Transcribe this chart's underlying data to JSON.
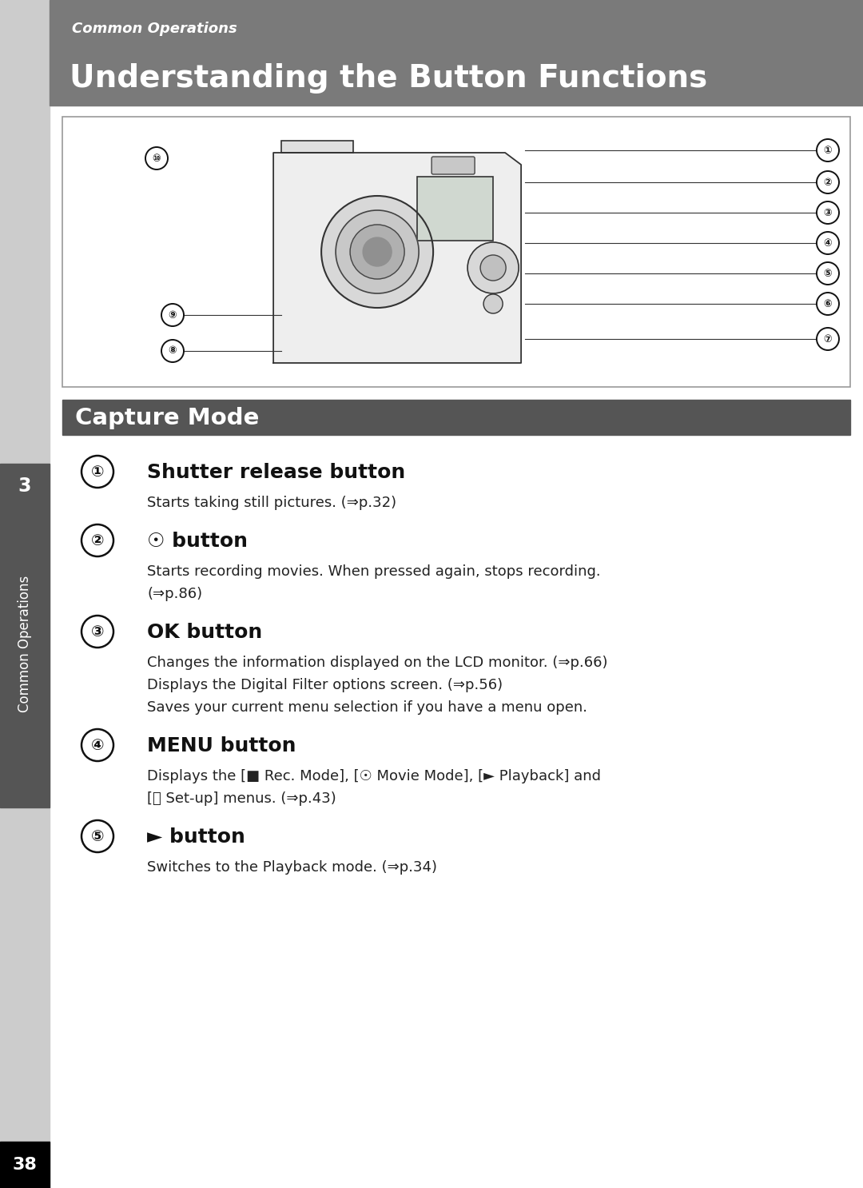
{
  "page_bg": "#ffffff",
  "header_bg": "#7a7a7a",
  "header_subtitle": "Common Operations",
  "header_title": "Understanding the Button Functions",
  "section_bar_bg": "#555555",
  "section_bar_text": "Capture Mode",
  "left_tab_bg": "#555555",
  "left_tab_text": "Common Operations",
  "left_tab_number": "3",
  "page_number": "38",
  "items": [
    {
      "num": "①",
      "heading": "Shutter release button",
      "lines": [
        "Starts taking still pictures. (⇒p.32)"
      ]
    },
    {
      "num": "②",
      "heading_pre": "☉ button",
      "heading": "☉ button",
      "lines": [
        "Starts recording movies. When pressed again, stops recording.",
        "(⇒p.86)"
      ]
    },
    {
      "num": "③",
      "heading": "OK button",
      "lines": [
        "Changes the information displayed on the LCD monitor. (⇒p.66)",
        "Displays the Digital Filter options screen. (⇒p.56)",
        "Saves your current menu selection if you have a menu open."
      ]
    },
    {
      "num": "④",
      "heading": "MENU button",
      "lines": [
        "Displays the [■ Rec. Mode], [☉ Movie Mode], [► Playback] and",
        "[⩙ Set-up] menus. (⇒p.43)"
      ]
    },
    {
      "num": "⑤",
      "heading": "► button",
      "lines": [
        "Switches to the Playback mode. (⇒p.34)"
      ]
    }
  ],
  "nums_right": [
    "①",
    "②",
    "③",
    "④",
    "⑤",
    "⑥",
    "⑦"
  ],
  "nums_bottom_left": [
    "⑩",
    "⑨",
    "⑧"
  ],
  "num_top_left": "⑩"
}
